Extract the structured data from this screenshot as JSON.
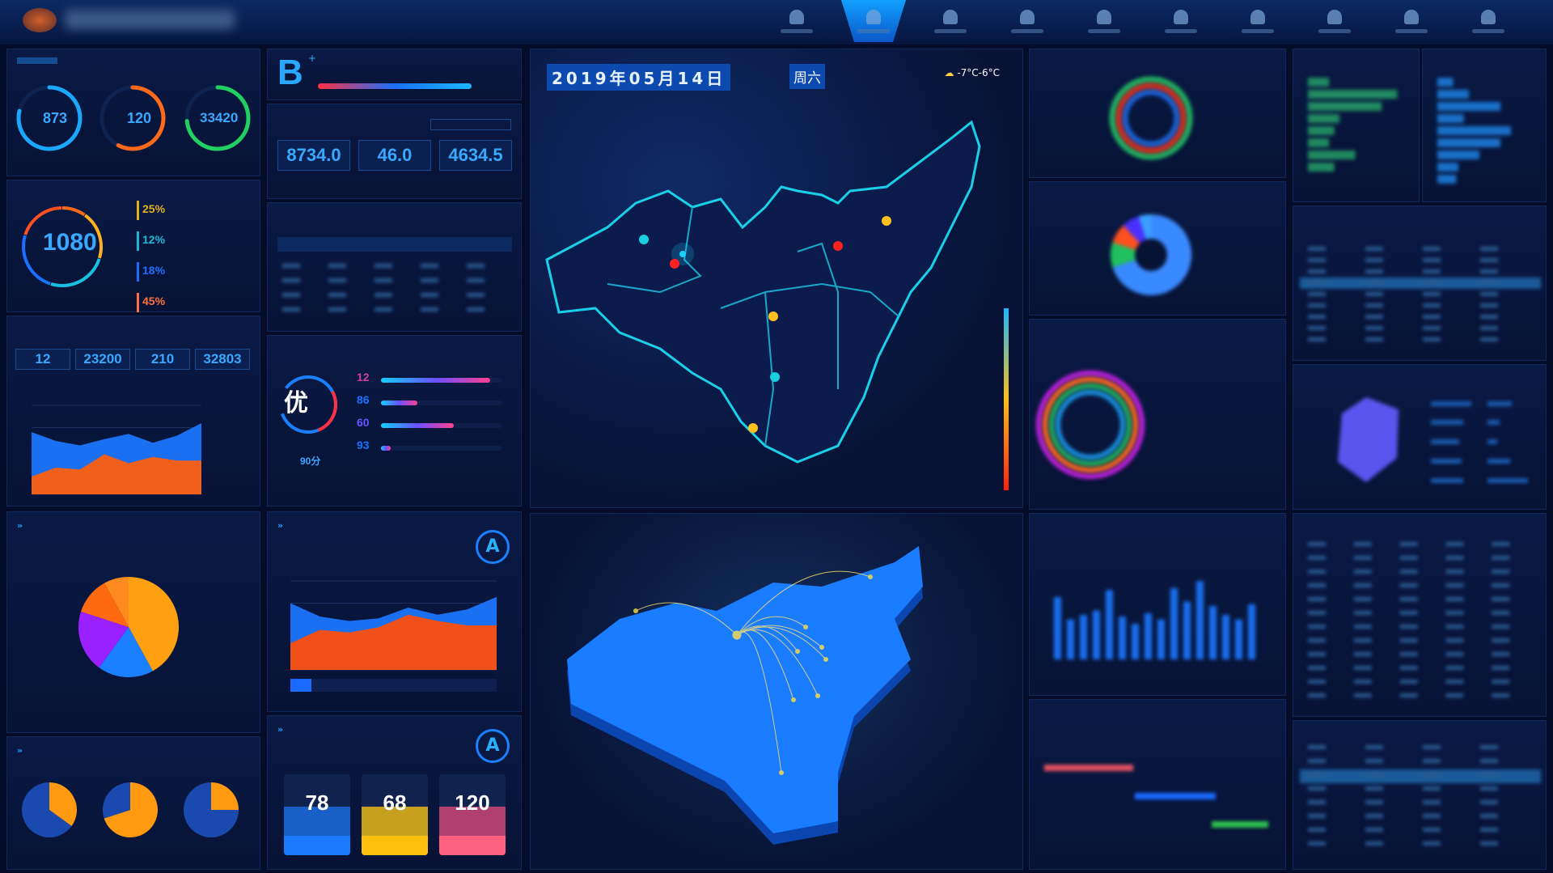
{
  "header": {
    "nav_count": 10,
    "active_index": 1
  },
  "rings": [
    {
      "value": "873",
      "color": "#1aa8ff",
      "pct": 0.75
    },
    {
      "value": "120",
      "color": "#ff6a1a",
      "pct": 0.55
    },
    {
      "value": "33420",
      "color": "#20d060",
      "pct": 0.7
    }
  ],
  "grade": {
    "letter": "B",
    "sup": "+"
  },
  "stats3": [
    "8734.0",
    "46.0",
    "4634.5"
  ],
  "cost": {
    "value": "1080",
    "items": [
      {
        "pct": "25%",
        "color": "#e0b020"
      },
      {
        "pct": "12%",
        "color": "#1ab8d8"
      },
      {
        "pct": "18%",
        "color": "#1a70ff"
      },
      {
        "pct": "45%",
        "color": "#ff7040"
      }
    ]
  },
  "stats4": [
    "12",
    "23200",
    "210",
    "32803"
  ],
  "eval": {
    "grade": "优",
    "score": "90分",
    "bars": [
      {
        "value": "12",
        "fill": 0.9,
        "color": "#d040a0"
      },
      {
        "value": "86",
        "fill": 0.3,
        "color": "#1a70ff"
      },
      {
        "value": "60",
        "fill": 0.6,
        "color": "#6a50ff"
      },
      {
        "value": "93",
        "fill": 0.08,
        "color": "#1a70ff"
      }
    ]
  },
  "supply_grade": "A",
  "device_grade": "A",
  "cards": [
    {
      "value": "78",
      "color": "#1a7aff",
      "top": "#1860c8"
    },
    {
      "value": "68",
      "color": "#ffc010",
      "top": "#c8a020"
    },
    {
      "value": "120",
      "color": "#ff6080",
      "top": "#b04070"
    }
  ],
  "map": {
    "date": "2019年05月14日",
    "weekday": "周六",
    "weather": "-7°C-6°C",
    "weather_icon": "partly-cloudy-icon"
  },
  "colors": {
    "accent": "#1ea0ff",
    "bg": "#050c2a"
  },
  "chart_data": [
    {
      "type": "area",
      "series": [
        {
          "values": [
            70,
            60,
            55,
            62,
            68,
            58,
            66,
            80
          ]
        },
        {
          "values": [
            20,
            30,
            28,
            45,
            35,
            42,
            38,
            0
          ]
        }
      ]
    },
    {
      "type": "area",
      "series": [
        {
          "values": [
            75,
            60,
            55,
            58,
            70,
            62,
            68,
            82
          ]
        },
        {
          "values": [
            30,
            45,
            42,
            48,
            62,
            55,
            50,
            58
          ]
        }
      ]
    },
    {
      "type": "pie",
      "values": [
        42,
        18,
        20,
        12,
        8
      ],
      "colors": [
        "#ffa010",
        "#1a80ff",
        "#9a20ff",
        "#ff6a10",
        "#ff8a20"
      ]
    },
    {
      "type": "pie",
      "values": [
        [
          35,
          65
        ],
        [
          70,
          30
        ],
        [
          25,
          75
        ]
      ]
    },
    {
      "type": "bar",
      "values": [
        70,
        45,
        50,
        55,
        78,
        48,
        40,
        52,
        45,
        80,
        65,
        88,
        60,
        50,
        45,
        62
      ]
    },
    {
      "type": "bar",
      "orientation": "horizontal",
      "values": [
        20,
        85,
        70,
        30,
        25,
        20,
        45,
        25
      ]
    },
    {
      "type": "bar",
      "orientation": "horizontal",
      "values": [
        15,
        30,
        60,
        25,
        70,
        60,
        40,
        20,
        18
      ]
    }
  ]
}
